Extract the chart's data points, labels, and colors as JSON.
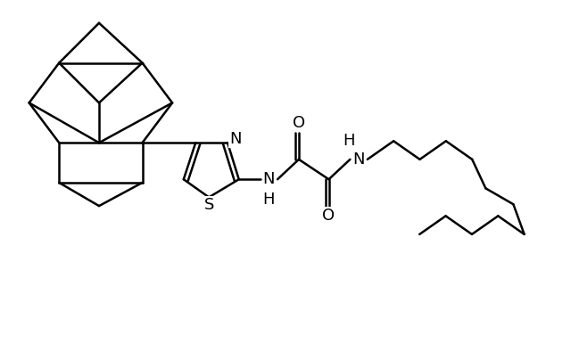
{
  "background_color": "#ffffff",
  "line_color": "#000000",
  "line_width": 1.8,
  "font_size": 12,
  "fig_width": 6.4,
  "fig_height": 3.95,
  "dpi": 100,
  "xlim": [
    0,
    8.5
  ],
  "ylim": [
    0,
    5.2
  ]
}
